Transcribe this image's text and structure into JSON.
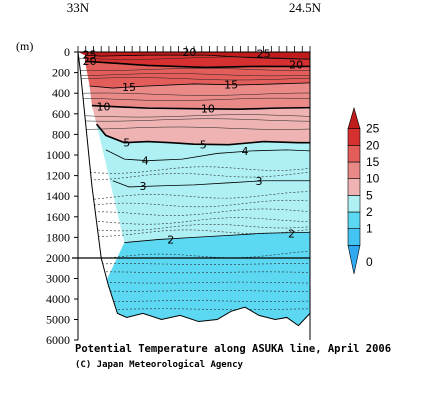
{
  "chart_data": {
    "type": "heatmap",
    "title": "Potential Temperature along ASUKA line, April 2006",
    "credit": "(C) Japan Meteorological Agency",
    "ylabel": "(m)",
    "x_labels": {
      "left": "33N",
      "right": "24.5N"
    },
    "y_ticks_upper": [
      0,
      200,
      400,
      600,
      800,
      1000,
      1200,
      1400,
      1600,
      1800,
      2000
    ],
    "y_ticks_lower": [
      3000,
      4000,
      5000,
      6000
    ],
    "ylim": [
      0,
      6000
    ],
    "y_axis_break": 2000,
    "colorbar": {
      "levels": [
        0,
        1,
        2,
        5,
        10,
        15,
        20,
        25
      ],
      "tick_labels": [
        "0",
        "1",
        "2",
        "5",
        "10",
        "15",
        "20",
        "25"
      ],
      "colors": [
        "#2fa9f0",
        "#44c4f2",
        "#5dd8f2",
        "#aef0f4",
        "#efb3b3",
        "#e98a88",
        "#e35e5a",
        "#d63030",
        "#c01c1c"
      ]
    },
    "contour_labels": [
      {
        "value": "25",
        "x": 0.05,
        "depth": 25
      },
      {
        "value": "20",
        "x": 0.05,
        "depth": 85
      },
      {
        "value": "20",
        "x": 0.48,
        "depth": 0
      },
      {
        "value": "25",
        "x": 0.8,
        "depth": 15
      },
      {
        "value": "20",
        "x": 0.94,
        "depth": 120
      },
      {
        "value": "15",
        "x": 0.22,
        "depth": 340
      },
      {
        "value": "15",
        "x": 0.66,
        "depth": 315
      },
      {
        "value": "10",
        "x": 0.11,
        "depth": 530
      },
      {
        "value": "10",
        "x": 0.56,
        "depth": 550
      },
      {
        "value": "5",
        "x": 0.21,
        "depth": 880
      },
      {
        "value": "5",
        "x": 0.54,
        "depth": 900
      },
      {
        "value": "4",
        "x": 0.29,
        "depth": 1055
      },
      {
        "value": "4",
        "x": 0.72,
        "depth": 960
      },
      {
        "value": "3",
        "x": 0.28,
        "depth": 1300
      },
      {
        "value": "3",
        "x": 0.78,
        "depth": 1250
      },
      {
        "value": "2",
        "x": 0.4,
        "depth": 1820
      },
      {
        "value": "2",
        "x": 0.92,
        "depth": 1760
      }
    ],
    "isotherms": [
      {
        "t": 25,
        "bold": false,
        "pts": [
          [
            0.03,
            30
          ],
          [
            0.1,
            40
          ],
          [
            0.3,
            30
          ],
          [
            0.55,
            30
          ],
          [
            0.75,
            55
          ],
          [
            0.9,
            65
          ],
          [
            1.0,
            70
          ]
        ]
      },
      {
        "t": 20,
        "bold": true,
        "pts": [
          [
            0.03,
            90
          ],
          [
            0.1,
            100
          ],
          [
            0.3,
            130
          ],
          [
            0.55,
            150
          ],
          [
            0.75,
            140
          ],
          [
            0.9,
            140
          ],
          [
            1.0,
            140
          ]
        ]
      },
      {
        "t": 15,
        "bold": false,
        "pts": [
          [
            0.05,
            330
          ],
          [
            0.15,
            350
          ],
          [
            0.3,
            330
          ],
          [
            0.5,
            310
          ],
          [
            0.7,
            320
          ],
          [
            0.85,
            310
          ],
          [
            1.0,
            300
          ]
        ]
      },
      {
        "t": 10,
        "bold": true,
        "pts": [
          [
            0.06,
            520
          ],
          [
            0.15,
            530
          ],
          [
            0.3,
            545
          ],
          [
            0.5,
            550
          ],
          [
            0.7,
            555
          ],
          [
            0.85,
            545
          ],
          [
            1.0,
            540
          ]
        ]
      },
      {
        "t": 5,
        "bold": true,
        "pts": [
          [
            0.08,
            700
          ],
          [
            0.12,
            810
          ],
          [
            0.2,
            880
          ],
          [
            0.3,
            870
          ],
          [
            0.4,
            880
          ],
          [
            0.5,
            895
          ],
          [
            0.65,
            900
          ],
          [
            0.8,
            870
          ],
          [
            0.95,
            880
          ],
          [
            1.0,
            880
          ]
        ]
      },
      {
        "t": 4,
        "bold": false,
        "pts": [
          [
            0.12,
            950
          ],
          [
            0.2,
            1040
          ],
          [
            0.3,
            1055
          ],
          [
            0.45,
            1040
          ],
          [
            0.6,
            985
          ],
          [
            0.75,
            960
          ],
          [
            0.9,
            950
          ],
          [
            1.0,
            960
          ]
        ]
      },
      {
        "t": 3,
        "bold": false,
        "pts": [
          [
            0.15,
            1250
          ],
          [
            0.22,
            1310
          ],
          [
            0.35,
            1300
          ],
          [
            0.5,
            1290
          ],
          [
            0.65,
            1270
          ],
          [
            0.8,
            1250
          ],
          [
            1.0,
            1250
          ]
        ]
      },
      {
        "t": 2,
        "bold": false,
        "pts": [
          [
            0.2,
            1850
          ],
          [
            0.35,
            1820
          ],
          [
            0.5,
            1800
          ],
          [
            0.65,
            1780
          ],
          [
            0.8,
            1760
          ],
          [
            1.0,
            1750
          ]
        ]
      }
    ],
    "deep_contours": [
      1120,
      1180,
      1380,
      1460,
      1540,
      1620,
      1680,
      1730,
      1960
    ],
    "deep_lower_contours": [
      2300,
      2700,
      3200,
      3600,
      4100,
      4500
    ],
    "station_count": 31,
    "seafloor_depth": [
      [
        0.0,
        0
      ],
      [
        0.01,
        180
      ],
      [
        0.06,
        1300
      ],
      [
        0.1,
        2000
      ],
      [
        0.13,
        3300
      ],
      [
        0.17,
        4700
      ],
      [
        0.21,
        4900
      ],
      [
        0.28,
        4700
      ],
      [
        0.36,
        5000
      ],
      [
        0.44,
        4800
      ],
      [
        0.52,
        5100
      ],
      [
        0.6,
        5000
      ],
      [
        0.66,
        4600
      ],
      [
        0.72,
        4400
      ],
      [
        0.78,
        4800
      ],
      [
        0.85,
        5000
      ],
      [
        0.9,
        4900
      ],
      [
        0.95,
        5300
      ],
      [
        1.0,
        4700
      ]
    ]
  }
}
